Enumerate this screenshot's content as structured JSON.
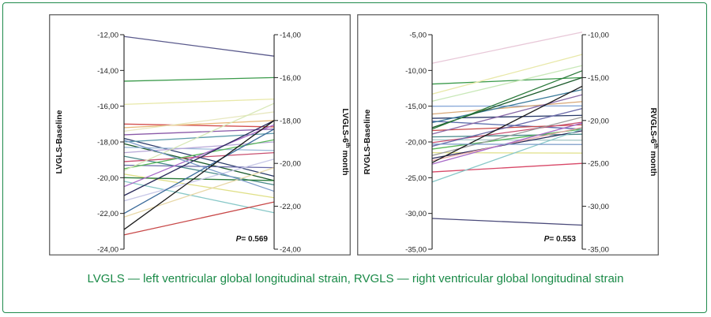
{
  "caption": "LVGLS — left ventricular global longitudinal strain, RVGLS — right ventricular global longitudinal strain",
  "chart_data": [
    {
      "type": "line",
      "id": "lvgls",
      "ylabel_left": "LVGLS-Baseline",
      "ylabel_right_main": "LVGLS-6",
      "ylabel_right_sup": "th",
      "ylabel_right_tail": " month",
      "left_axis": {
        "range": [
          -24,
          -12
        ],
        "ticks": [
          "-12,00",
          "-14,00",
          "-16,00",
          "-18,00",
          "-20,00",
          "-22,00",
          "-24,00"
        ],
        "values": [
          -12,
          -14,
          -16,
          -18,
          -20,
          -22,
          -24
        ]
      },
      "right_axis": {
        "range": [
          -24,
          -14
        ],
        "ticks": [
          "-14,00",
          "-16,00",
          "-18,00",
          "-20,00",
          "-22,00",
          "-24,00"
        ],
        "values": [
          -14,
          -16,
          -18,
          -20,
          -22,
          -24
        ]
      },
      "p_label": "P",
      "p_value": "= 0.569",
      "series": [
        {
          "baseline": -12.1,
          "month6": -15.0,
          "color": "#5a5a8c"
        },
        {
          "baseline": -14.6,
          "month6": -16.0,
          "color": "#3a9a4a"
        },
        {
          "baseline": -15.9,
          "month6": -17.0,
          "color": "#e8e8a8"
        },
        {
          "baseline": -17.0,
          "month6": -18.3,
          "color": "#d45050"
        },
        {
          "baseline": -17.2,
          "month6": -18.0,
          "color": "#e8b878"
        },
        {
          "baseline": -17.4,
          "month6": -17.6,
          "color": "#e8e8c0"
        },
        {
          "baseline": -17.6,
          "month6": -18.4,
          "color": "#8a5aa8"
        },
        {
          "baseline": -17.8,
          "month6": -20.6,
          "color": "#2a3a6a"
        },
        {
          "baseline": -18.0,
          "month6": -18.6,
          "color": "#5a9aaa"
        },
        {
          "baseline": -18.1,
          "month6": -20.8,
          "color": "#1a5a2a"
        },
        {
          "baseline": -18.3,
          "month6": -19.4,
          "color": "#9ab8d8"
        },
        {
          "baseline": -18.6,
          "month6": -19.0,
          "color": "#b8a8d8"
        },
        {
          "baseline": -18.8,
          "month6": -21.0,
          "color": "#4a8a8a"
        },
        {
          "baseline": -19.1,
          "month6": -19.5,
          "color": "#c85070"
        },
        {
          "baseline": -19.3,
          "month6": -20.2,
          "color": "#6a6aaa"
        },
        {
          "baseline": -19.5,
          "month6": -18.9,
          "color": "#58b858"
        },
        {
          "baseline": -19.8,
          "month6": -21.6,
          "color": "#e0e088"
        },
        {
          "baseline": -20.0,
          "month6": -20.8,
          "color": "#2a7a3a"
        },
        {
          "baseline": -20.2,
          "month6": -22.3,
          "color": "#88c8c8"
        },
        {
          "baseline": -20.5,
          "month6": -18.2,
          "color": "#a86ac8"
        },
        {
          "baseline": -21.0,
          "month6": -18.0,
          "color": "#2a2a5a"
        },
        {
          "baseline": -21.3,
          "month6": -19.8,
          "color": "#c8c8e8"
        },
        {
          "baseline": -22.0,
          "month6": -18.4,
          "color": "#3a6a9a"
        },
        {
          "baseline": -22.2,
          "month6": -20.2,
          "color": "#e8d8a8"
        },
        {
          "baseline": -22.9,
          "month6": -18.0,
          "color": "#1a1a1a"
        },
        {
          "baseline": -23.2,
          "month6": -21.8,
          "color": "#c84848"
        },
        {
          "baseline": -19.6,
          "month6": -17.2,
          "color": "#d8e8b8"
        },
        {
          "baseline": -17.9,
          "month6": -21.3,
          "color": "#7a9ac8"
        }
      ]
    },
    {
      "type": "line",
      "id": "rvgls",
      "ylabel_left": "RVGLS-Baseline",
      "ylabel_right_main": "RVGLS-6",
      "ylabel_right_sup": "th",
      "ylabel_right_tail": " month",
      "left_axis": {
        "range": [
          -35,
          -5
        ],
        "ticks": [
          "-5,00",
          "-10,00",
          "-15,00",
          "-20,00",
          "-25,00",
          "-30,00",
          "-35,00"
        ],
        "values": [
          -5,
          -10,
          -15,
          -20,
          -25,
          -30,
          -35
        ]
      },
      "right_axis": {
        "range": [
          -35,
          -10
        ],
        "ticks": [
          "-10,00",
          "-15,00",
          "-20,00",
          "-25,00",
          "-30,00",
          "-35,00"
        ],
        "values": [
          -10,
          -15,
          -20,
          -25,
          -30,
          -35
        ]
      },
      "p_label": "P",
      "p_value": "= 0.553",
      "series": [
        {
          "baseline": -9.0,
          "month6": -9.7,
          "color": "#e8c8d8"
        },
        {
          "baseline": -11.9,
          "month6": -15.0,
          "color": "#3a9a4a"
        },
        {
          "baseline": -13.3,
          "month6": -12.3,
          "color": "#e8e8a8"
        },
        {
          "baseline": -14.3,
          "month6": -13.6,
          "color": "#c8e8b8"
        },
        {
          "baseline": -15.0,
          "month6": -18.3,
          "color": "#88a8d8"
        },
        {
          "baseline": -16.1,
          "month6": -17.8,
          "color": "#d8a878"
        },
        {
          "baseline": -16.7,
          "month6": -19.4,
          "color": "#2a3a6a"
        },
        {
          "baseline": -17.1,
          "month6": -21.0,
          "color": "#5a6aaa"
        },
        {
          "baseline": -17.3,
          "month6": -16.4,
          "color": "#3a7a9a"
        },
        {
          "baseline": -18.0,
          "month6": -15.0,
          "color": "#1a5a2a"
        },
        {
          "baseline": -18.4,
          "month6": -20.5,
          "color": "#c84848"
        },
        {
          "baseline": -18.9,
          "month6": -17.0,
          "color": "#8a6aa8"
        },
        {
          "baseline": -19.3,
          "month6": -21.6,
          "color": "#4a8a8a"
        },
        {
          "baseline": -19.7,
          "month6": -22.3,
          "color": "#a8c8c8"
        },
        {
          "baseline": -20.1,
          "month6": -20.2,
          "color": "#c85070"
        },
        {
          "baseline": -20.6,
          "month6": -18.6,
          "color": "#6a6aaa"
        },
        {
          "baseline": -21.0,
          "month6": -21.0,
          "color": "#58b858"
        },
        {
          "baseline": -21.5,
          "month6": -23.8,
          "color": "#e0e088"
        },
        {
          "baseline": -21.9,
          "month6": -19.6,
          "color": "#9a9a9a"
        },
        {
          "baseline": -22.3,
          "month6": -21.2,
          "color": "#2a2a5a"
        },
        {
          "baseline": -22.6,
          "month6": -20.8,
          "color": "#e8a8a8"
        },
        {
          "baseline": -22.9,
          "month6": -16.0,
          "color": "#1a1a1a"
        },
        {
          "baseline": -23.1,
          "month6": -20.3,
          "color": "#a86ac8"
        },
        {
          "baseline": -24.2,
          "month6": -25.0,
          "color": "#d84868"
        },
        {
          "baseline": -25.6,
          "month6": -21.0,
          "color": "#88c8c8"
        },
        {
          "baseline": -30.7,
          "month6": -32.2,
          "color": "#4a4a7a"
        },
        {
          "baseline": -18.2,
          "month6": -14.2,
          "color": "#2a7a3a"
        },
        {
          "baseline": -20.3,
          "month6": -22.8,
          "color": "#7a9ac8"
        }
      ]
    }
  ]
}
